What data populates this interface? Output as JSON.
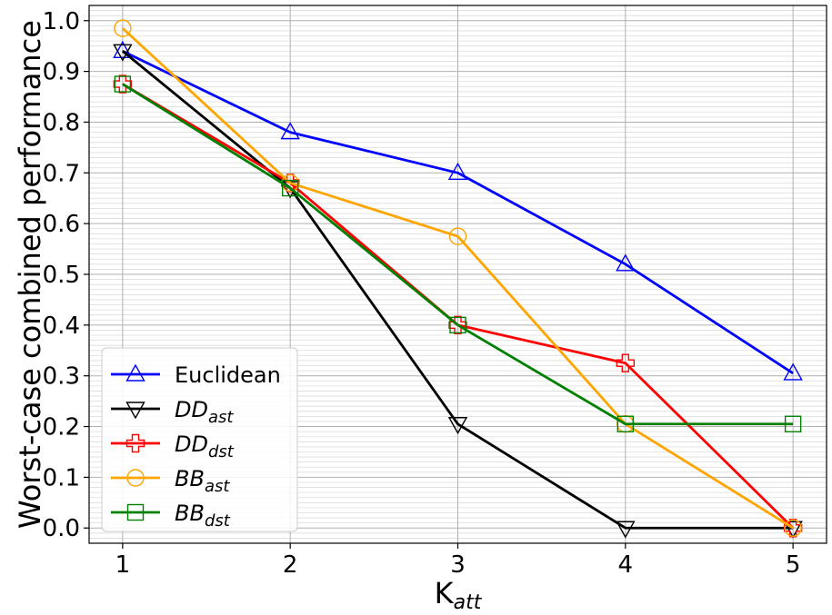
{
  "chart_data": {
    "type": "line",
    "title": "",
    "xlabel_main": "K",
    "xlabel_sub": "att",
    "ylabel": "Worst-case combined performance",
    "x": [
      1,
      2,
      3,
      4,
      5
    ],
    "xlim": [
      0.8,
      5.2
    ],
    "ylim": [
      -0.03,
      1.03
    ],
    "xticks": [
      "1",
      "2",
      "3",
      "4",
      "5"
    ],
    "yticks": [
      "0.0",
      "0.1",
      "0.2",
      "0.3",
      "0.4",
      "0.5",
      "0.6",
      "0.7",
      "0.8",
      "0.9",
      "1.0"
    ],
    "grid": true,
    "legend_position": "lower-left",
    "series": [
      {
        "name": "Euclidean",
        "name_main": "Euclidean",
        "name_sub": "",
        "italic": false,
        "color": "#0000ff",
        "marker": "triangle-up",
        "values": [
          0.94,
          0.78,
          0.7,
          0.52,
          0.305
        ]
      },
      {
        "name": "DDast",
        "name_main": "DD",
        "name_sub": "ast",
        "italic": true,
        "color": "#000000",
        "marker": "triangle-down",
        "values": [
          0.94,
          0.67,
          0.205,
          0.0,
          0.0
        ]
      },
      {
        "name": "DDdst",
        "name_main": "DD",
        "name_sub": "dst",
        "italic": true,
        "color": "#ff0000",
        "marker": "plus",
        "values": [
          0.875,
          0.68,
          0.4,
          0.325,
          0.0
        ]
      },
      {
        "name": "BBast",
        "name_main": "BB",
        "name_sub": "ast",
        "italic": true,
        "color": "#ffa500",
        "marker": "circle",
        "values": [
          0.985,
          0.68,
          0.575,
          0.205,
          0.0
        ]
      },
      {
        "name": "BBdst",
        "name_main": "BB",
        "name_sub": "dst",
        "italic": true,
        "color": "#008000",
        "marker": "square",
        "values": [
          0.875,
          0.67,
          0.4,
          0.205,
          0.205
        ]
      }
    ]
  }
}
